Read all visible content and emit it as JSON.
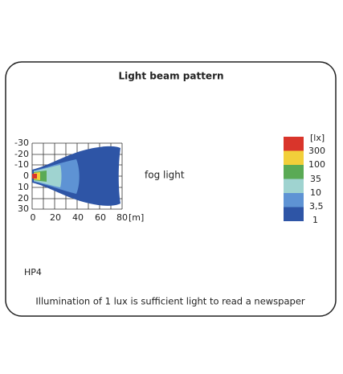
{
  "title": "Light beam pattern",
  "y_tick_labels": [
    "-30",
    "-20",
    "-10",
    "0",
    "10",
    "20",
    "30"
  ],
  "x_tick_labels": [
    "0",
    "20",
    "40",
    "60",
    "80"
  ],
  "x_unit": "[m]",
  "beam_label": "fog light",
  "legend": {
    "unit": "[lx]",
    "labels": [
      "300",
      "100",
      "35",
      "10",
      "3,5",
      "1"
    ]
  },
  "model": "HP4",
  "caption": "Illumination of 1 lux is sufficient light to read a newspaper"
}
